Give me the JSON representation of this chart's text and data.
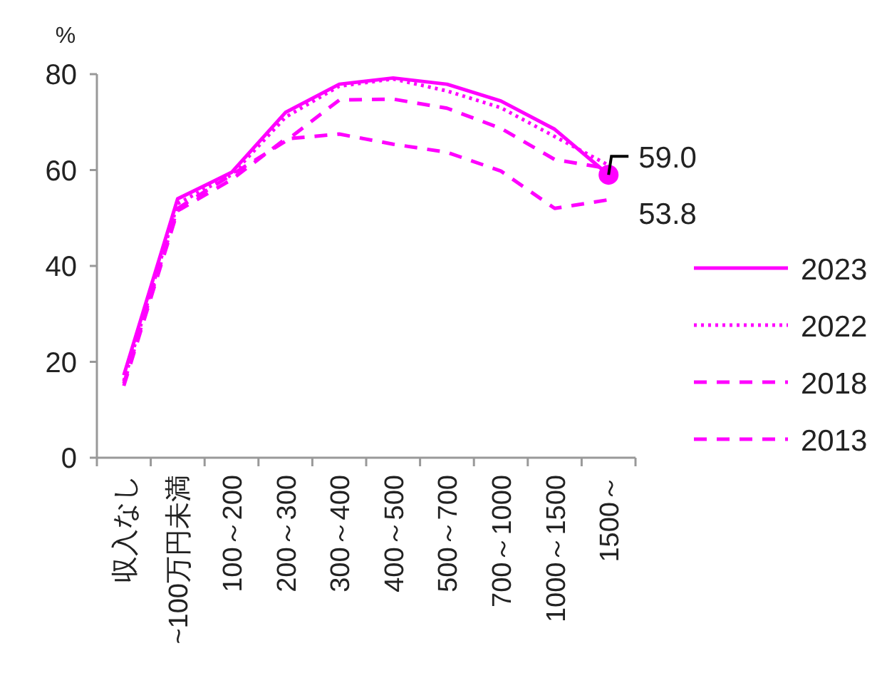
{
  "chart_data": {
    "type": "line",
    "ylabel": "%",
    "categories": [
      "収入なし",
      "~100万円未満",
      "100～200",
      "200～300",
      "300～400",
      "400～500",
      "500～700",
      "700～1000",
      "1000～1500",
      "1500～"
    ],
    "ylim": [
      0,
      80
    ],
    "yticks": [
      0,
      20,
      40,
      60,
      80
    ],
    "legend": "right",
    "marker": "none",
    "series": [
      {
        "name": "2023",
        "color": "#ff00ff",
        "line_style": "solid",
        "values": [
          17.2,
          54,
          59.5,
          72,
          77.9,
          79.2,
          77.9,
          74.4,
          68.5,
          59.0
        ],
        "value_labels": [
          null,
          null,
          null,
          null,
          null,
          null,
          null,
          null,
          null,
          "59.0"
        ]
      },
      {
        "name": "2022",
        "color": "#ff00ff",
        "line_style": "dotted",
        "values": [
          16,
          53,
          59,
          71,
          77.5,
          79,
          76.5,
          73,
          67,
          61
        ]
      },
      {
        "name": "2018",
        "color": "#ff00ff",
        "line_style": "dashed",
        "values": [
          15.5,
          52,
          59,
          66,
          74.6,
          74.8,
          72.9,
          68.7,
          62.2,
          60.3
        ]
      },
      {
        "name": "2013",
        "color": "#ff00ff",
        "line_style": "dashed",
        "values": [
          15,
          51.5,
          58,
          66.5,
          67.5,
          65.4,
          63.7,
          59.8,
          52,
          53.8
        ],
        "value_labels": [
          null,
          null,
          null,
          null,
          null,
          null,
          null,
          null,
          null,
          "53.8"
        ]
      }
    ]
  }
}
